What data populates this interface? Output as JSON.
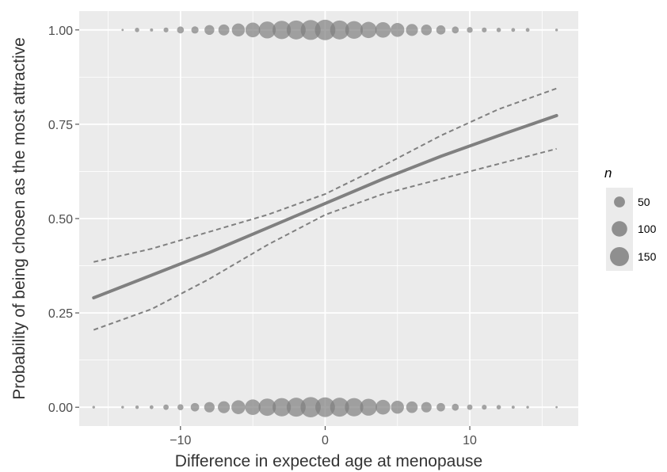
{
  "chart_data": {
    "type": "scatter",
    "title": "",
    "xlabel": "Difference in expected age at menopause",
    "ylabel": "Probability of being chosen as the most attractive",
    "xlim": [
      -17,
      17.5
    ],
    "ylim": [
      -0.05,
      1.05
    ],
    "x_ticks": [
      -10,
      0,
      10
    ],
    "x_tick_labels": [
      "−10",
      "0",
      "10"
    ],
    "y_ticks": [
      0,
      0.25,
      0.5,
      0.75,
      1
    ],
    "y_tick_labels": [
      "0.00",
      "0.25",
      "0.50",
      "0.75",
      "1.00"
    ],
    "grid": true,
    "legend_position": "right",
    "legend": {
      "title": "n",
      "entries": [
        {
          "label": "50",
          "size": 50
        },
        {
          "label": "100",
          "size": 100
        },
        {
          "label": "150",
          "size": 150
        }
      ]
    },
    "colors": {
      "panel": "#ebebeb",
      "grid": "#ffffff",
      "point": "#7f7f7f",
      "fit_line": "#808080"
    },
    "points_y1": [
      {
        "x": -14,
        "n": 2
      },
      {
        "x": -13,
        "n": 8
      },
      {
        "x": -12,
        "n": 4
      },
      {
        "x": -11,
        "n": 10
      },
      {
        "x": -10,
        "n": 20
      },
      {
        "x": -9,
        "n": 22
      },
      {
        "x": -8,
        "n": 40
      },
      {
        "x": -7,
        "n": 50
      },
      {
        "x": -6,
        "n": 70
      },
      {
        "x": -5,
        "n": 90
      },
      {
        "x": -4,
        "n": 120
      },
      {
        "x": -3,
        "n": 140
      },
      {
        "x": -2,
        "n": 150
      },
      {
        "x": -1,
        "n": 165
      },
      {
        "x": 0,
        "n": 175
      },
      {
        "x": 1,
        "n": 150
      },
      {
        "x": 2,
        "n": 130
      },
      {
        "x": 3,
        "n": 110
      },
      {
        "x": 4,
        "n": 100
      },
      {
        "x": 5,
        "n": 80
      },
      {
        "x": 6,
        "n": 60
      },
      {
        "x": 7,
        "n": 48
      },
      {
        "x": 8,
        "n": 35
      },
      {
        "x": 9,
        "n": 20
      },
      {
        "x": 10,
        "n": 14
      },
      {
        "x": 11,
        "n": 10
      },
      {
        "x": 12,
        "n": 8
      },
      {
        "x": 13,
        "n": 6
      },
      {
        "x": 14,
        "n": 6
      },
      {
        "x": 16,
        "n": 3
      }
    ],
    "points_y0": [
      {
        "x": -16,
        "n": 3
      },
      {
        "x": -14,
        "n": 3
      },
      {
        "x": -13,
        "n": 5
      },
      {
        "x": -12,
        "n": 6
      },
      {
        "x": -11,
        "n": 12
      },
      {
        "x": -10,
        "n": 15
      },
      {
        "x": -9,
        "n": 30
      },
      {
        "x": -8,
        "n": 45
      },
      {
        "x": -7,
        "n": 60
      },
      {
        "x": -6,
        "n": 80
      },
      {
        "x": -5,
        "n": 100
      },
      {
        "x": -4,
        "n": 125
      },
      {
        "x": -3,
        "n": 140
      },
      {
        "x": -2,
        "n": 150
      },
      {
        "x": -1,
        "n": 170
      },
      {
        "x": 0,
        "n": 160
      },
      {
        "x": 1,
        "n": 150
      },
      {
        "x": 2,
        "n": 140
      },
      {
        "x": 3,
        "n": 120
      },
      {
        "x": 4,
        "n": 90
      },
      {
        "x": 5,
        "n": 70
      },
      {
        "x": 6,
        "n": 55
      },
      {
        "x": 7,
        "n": 45
      },
      {
        "x": 8,
        "n": 30
      },
      {
        "x": 9,
        "n": 20
      },
      {
        "x": 10,
        "n": 12
      },
      {
        "x": 11,
        "n": 10
      },
      {
        "x": 12,
        "n": 8
      },
      {
        "x": 13,
        "n": 4
      },
      {
        "x": 14,
        "n": 3
      },
      {
        "x": 16,
        "n": 2
      }
    ],
    "fit_line": {
      "x": [
        -16,
        -12,
        -8,
        -4,
        0,
        4,
        8,
        12,
        16
      ],
      "y": [
        0.29,
        0.35,
        0.41,
        0.475,
        0.54,
        0.605,
        0.665,
        0.72,
        0.773
      ]
    },
    "ci_upper": {
      "x": [
        -16,
        -12,
        -8,
        -4,
        0,
        4,
        8,
        12,
        16
      ],
      "y": [
        0.385,
        0.42,
        0.465,
        0.51,
        0.565,
        0.64,
        0.72,
        0.79,
        0.845
      ]
    },
    "ci_lower": {
      "x": [
        -16,
        -12,
        -8,
        -4,
        0,
        4,
        8,
        12,
        16
      ],
      "y": [
        0.205,
        0.26,
        0.34,
        0.43,
        0.51,
        0.565,
        0.605,
        0.645,
        0.685
      ]
    }
  }
}
